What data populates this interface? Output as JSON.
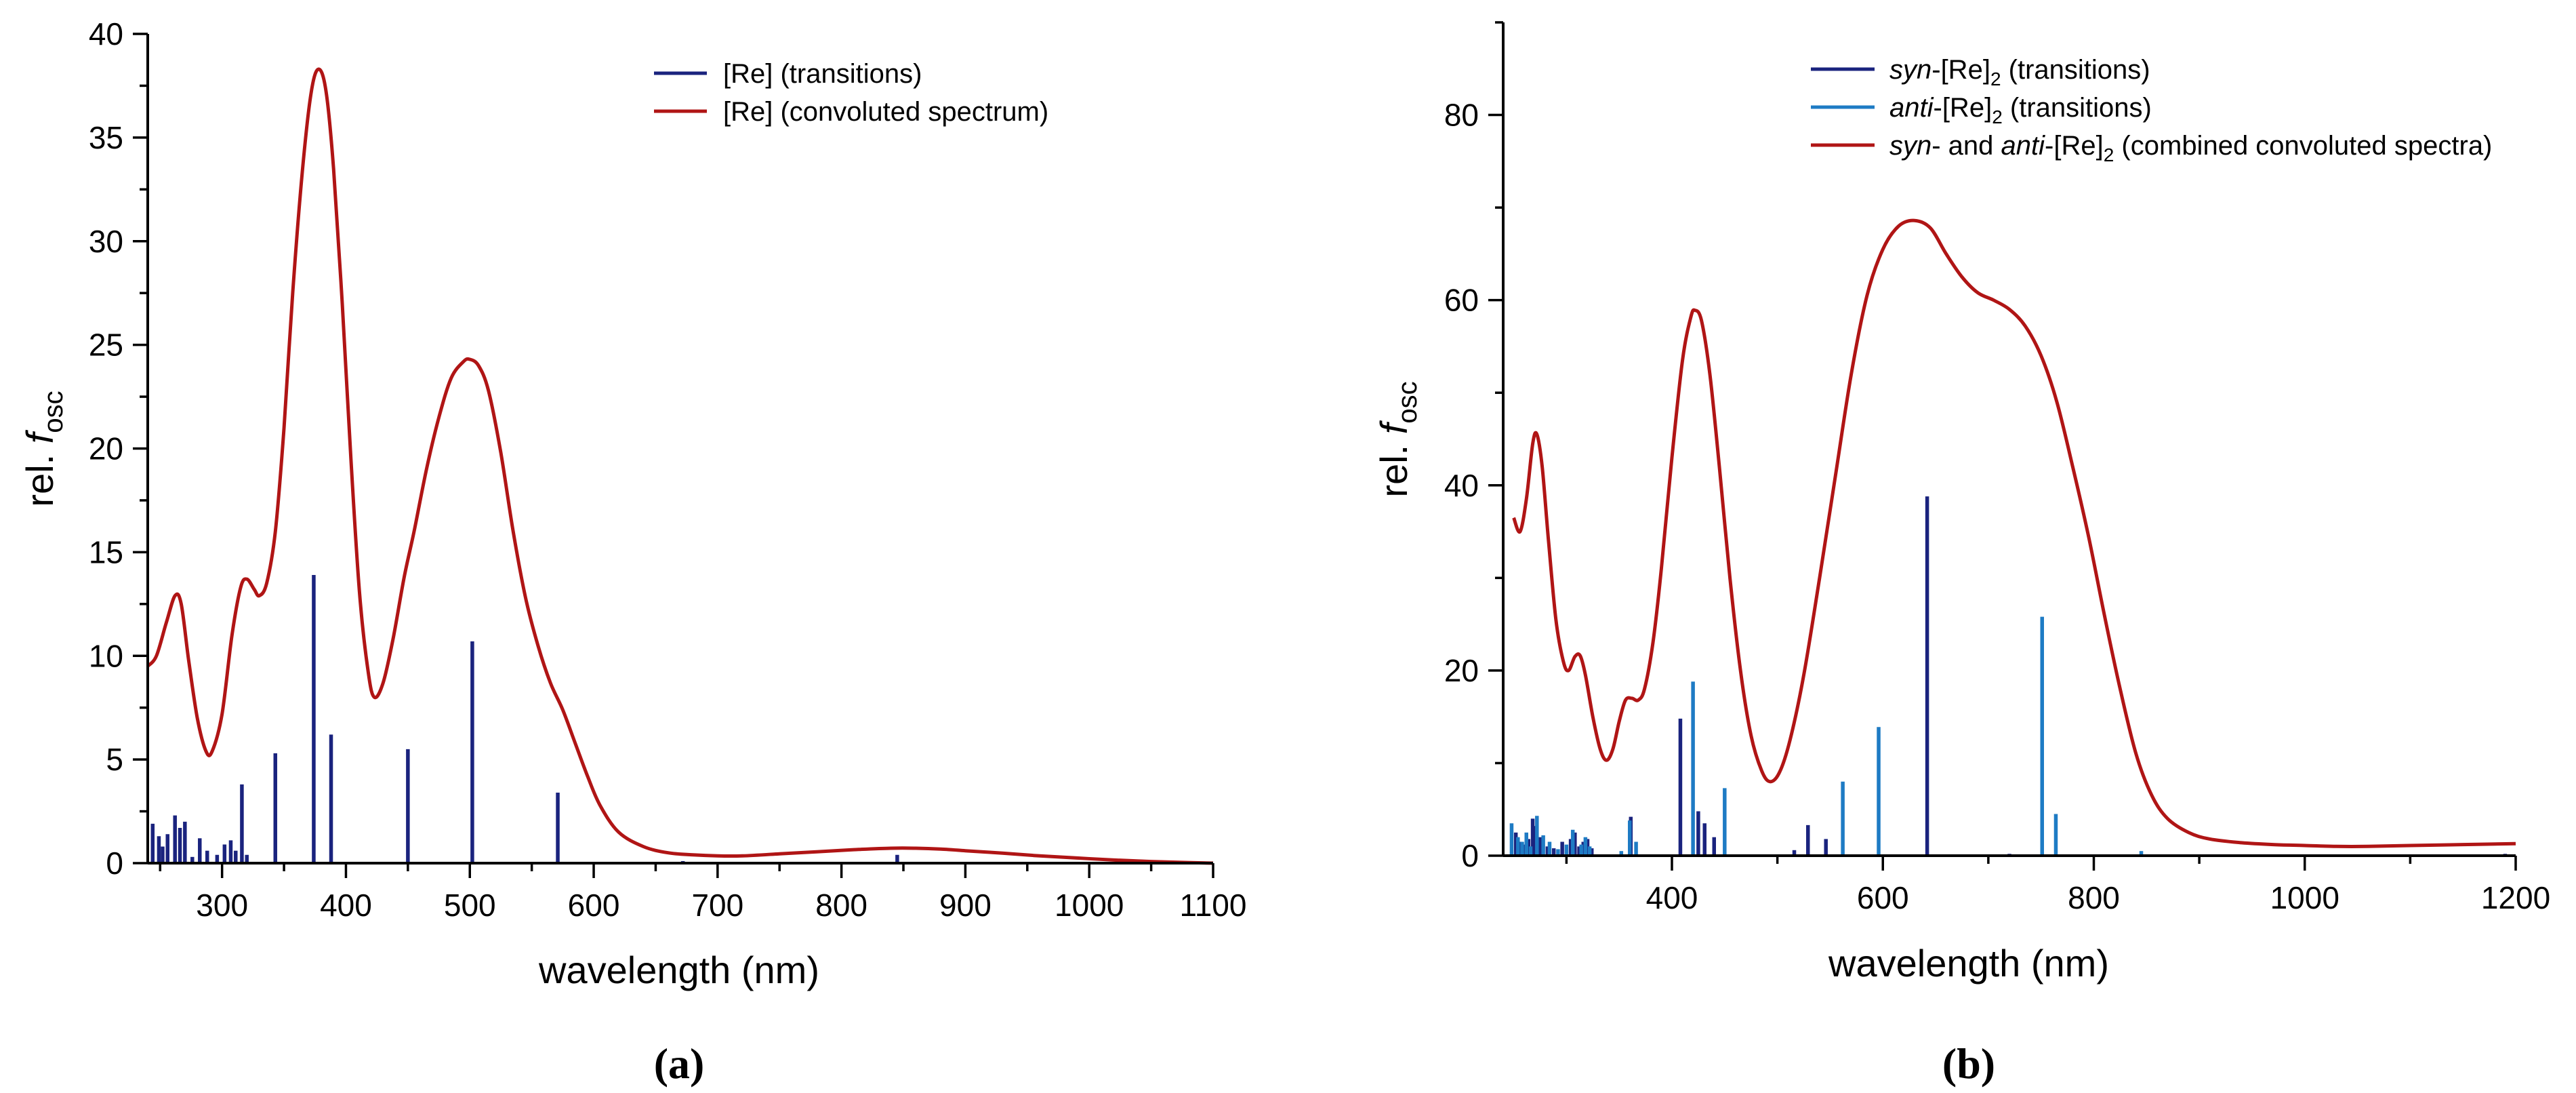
{
  "chart_data": [
    {
      "type": "line",
      "panel_label": "(a)",
      "xlabel": "wavelength (nm)",
      "ylabel_prefix": "rel. ",
      "ylabel_var": "f",
      "ylabel_sub": "osc",
      "xlim": [
        240,
        1100
      ],
      "ylim": [
        0,
        40
      ],
      "xticks": [
        300,
        400,
        500,
        600,
        700,
        800,
        900,
        1000,
        1100
      ],
      "yticks": [
        0,
        5,
        10,
        15,
        20,
        25,
        30,
        35,
        40
      ],
      "legend_position": "top-right",
      "legend": [
        {
          "text": "[Re] (transitions)",
          "style": "bar",
          "color": "#1a237e"
        },
        {
          "text": "[Re] (convoluted spectrum)",
          "style": "line",
          "color": "#b01515"
        }
      ],
      "series": [
        {
          "name": "[Re] (convoluted spectrum)",
          "kind": "line",
          "color": "#b01515",
          "points": [
            [
              240,
              9.5
            ],
            [
              247,
              10.0
            ],
            [
              255,
              11.6
            ],
            [
              262,
              12.9
            ],
            [
              267,
              12.5
            ],
            [
              273,
              9.8
            ],
            [
              280,
              7.0
            ],
            [
              287,
              5.4
            ],
            [
              292,
              5.4
            ],
            [
              300,
              7.2
            ],
            [
              308,
              11.0
            ],
            [
              315,
              13.3
            ],
            [
              320,
              13.7
            ],
            [
              326,
              13.2
            ],
            [
              330,
              12.9
            ],
            [
              336,
              13.5
            ],
            [
              343,
              16.0
            ],
            [
              350,
              21.0
            ],
            [
              357,
              27.5
            ],
            [
              365,
              33.5
            ],
            [
              372,
              37.2
            ],
            [
              378,
              38.3
            ],
            [
              384,
              37.2
            ],
            [
              390,
              33.5
            ],
            [
              397,
              27.0
            ],
            [
              404,
              19.5
            ],
            [
              411,
              13.0
            ],
            [
              418,
              9.2
            ],
            [
              423,
              8.0
            ],
            [
              430,
              8.7
            ],
            [
              438,
              10.8
            ],
            [
              447,
              13.8
            ],
            [
              455,
              16.0
            ],
            [
              465,
              19.0
            ],
            [
              475,
              21.5
            ],
            [
              485,
              23.4
            ],
            [
              495,
              24.2
            ],
            [
              500,
              24.3
            ],
            [
              507,
              24.0
            ],
            [
              515,
              22.8
            ],
            [
              525,
              19.8
            ],
            [
              535,
              16.0
            ],
            [
              545,
              12.8
            ],
            [
              555,
              10.5
            ],
            [
              565,
              8.7
            ],
            [
              575,
              7.4
            ],
            [
              585,
              5.8
            ],
            [
              595,
              4.2
            ],
            [
              605,
              2.8
            ],
            [
              620,
              1.5
            ],
            [
              640,
              0.8
            ],
            [
              660,
              0.5
            ],
            [
              680,
              0.4
            ],
            [
              700,
              0.35
            ],
            [
              720,
              0.35
            ],
            [
              750,
              0.45
            ],
            [
              780,
              0.55
            ],
            [
              810,
              0.65
            ],
            [
              840,
              0.72
            ],
            [
              860,
              0.72
            ],
            [
              880,
              0.68
            ],
            [
              900,
              0.6
            ],
            [
              930,
              0.48
            ],
            [
              960,
              0.35
            ],
            [
              990,
              0.25
            ],
            [
              1020,
              0.15
            ],
            [
              1050,
              0.08
            ],
            [
              1080,
              0.03
            ],
            [
              1100,
              0.0
            ]
          ]
        },
        {
          "name": "[Re] (transitions)",
          "kind": "sticks",
          "color": "#1a237e",
          "points": [
            [
              244,
              1.9
            ],
            [
              249,
              1.3
            ],
            [
              252,
              0.8
            ],
            [
              256,
              1.4
            ],
            [
              262,
              2.3
            ],
            [
              266,
              1.7
            ],
            [
              270,
              2.0
            ],
            [
              276,
              0.3
            ],
            [
              282,
              1.2
            ],
            [
              288,
              0.6
            ],
            [
              296,
              0.4
            ],
            [
              302,
              0.9
            ],
            [
              307,
              1.1
            ],
            [
              311,
              0.6
            ],
            [
              316,
              3.8
            ],
            [
              320,
              0.4
            ],
            [
              343,
              5.3
            ],
            [
              374,
              13.9
            ],
            [
              388,
              6.2
            ],
            [
              450,
              5.5
            ],
            [
              502,
              10.7
            ],
            [
              571,
              3.4
            ],
            [
              672,
              0.1
            ],
            [
              845,
              0.4
            ]
          ]
        }
      ]
    },
    {
      "type": "line",
      "panel_label": "(b)",
      "xlabel": "wavelength (nm)",
      "ylabel_prefix": "rel. ",
      "ylabel_var": "f",
      "ylabel_sub": "osc",
      "xlim": [
        240,
        1200
      ],
      "ylim": [
        0,
        90
      ],
      "xticks": [
        400,
        600,
        800,
        1000,
        1200
      ],
      "yticks": [
        0,
        20,
        40,
        60,
        80
      ],
      "legend_position": "top-right",
      "legend": [
        {
          "italic": "syn",
          "text": "-[Re]",
          "sub": "2",
          "tail": " (transitions)",
          "style": "bar",
          "color": "#1a237e"
        },
        {
          "italic": "anti",
          "text": "-[Re]",
          "sub": "2",
          "tail": " (transitions)",
          "style": "bar",
          "color": "#1e7bc4"
        },
        {
          "italic": "syn",
          "text": "- and ",
          "italic2": "anti",
          "text2": "-[Re]",
          "sub": "2",
          "tail": " (combined convoluted spectra)",
          "style": "line",
          "color": "#b01515"
        }
      ],
      "series": [
        {
          "name": "syn- and anti-[Re]2 (combined convoluted spectra)",
          "kind": "line",
          "color": "#b01515",
          "points": [
            [
              250,
              36.5
            ],
            [
              256,
              35.0
            ],
            [
              262,
              38.5
            ],
            [
              268,
              44.5
            ],
            [
              272,
              45.5
            ],
            [
              277,
              42.0
            ],
            [
              283,
              34.0
            ],
            [
              290,
              25.5
            ],
            [
              297,
              21.0
            ],
            [
              302,
              20.0
            ],
            [
              308,
              21.5
            ],
            [
              313,
              21.6
            ],
            [
              318,
              19.5
            ],
            [
              325,
              15.0
            ],
            [
              332,
              11.5
            ],
            [
              338,
              10.3
            ],
            [
              344,
              11.5
            ],
            [
              350,
              14.5
            ],
            [
              356,
              16.8
            ],
            [
              362,
              17.0
            ],
            [
              368,
              16.8
            ],
            [
              374,
              18.0
            ],
            [
              382,
              23.0
            ],
            [
              390,
              31.0
            ],
            [
              400,
              43.0
            ],
            [
              410,
              53.5
            ],
            [
              418,
              58.2
            ],
            [
              422,
              58.9
            ],
            [
              428,
              57.8
            ],
            [
              436,
              52.0
            ],
            [
              445,
              42.0
            ],
            [
              455,
              30.0
            ],
            [
              465,
              20.0
            ],
            [
              475,
              13.0
            ],
            [
              485,
              9.2
            ],
            [
              493,
              8.0
            ],
            [
              502,
              9.0
            ],
            [
              512,
              12.5
            ],
            [
              525,
              19.5
            ],
            [
              540,
              30.0
            ],
            [
              555,
              41.0
            ],
            [
              570,
              52.0
            ],
            [
              585,
              60.5
            ],
            [
              600,
              65.5
            ],
            [
              615,
              68.0
            ],
            [
              630,
              68.6
            ],
            [
              645,
              67.8
            ],
            [
              660,
              65.0
            ],
            [
              675,
              62.5
            ],
            [
              690,
              60.8
            ],
            [
              705,
              60.0
            ],
            [
              720,
              59.0
            ],
            [
              735,
              57.2
            ],
            [
              750,
              54.0
            ],
            [
              765,
              49.0
            ],
            [
              780,
              42.0
            ],
            [
              795,
              34.5
            ],
            [
              810,
              26.0
            ],
            [
              825,
              18.0
            ],
            [
              840,
              11.0
            ],
            [
              855,
              6.5
            ],
            [
              870,
              4.0
            ],
            [
              890,
              2.5
            ],
            [
              910,
              1.8
            ],
            [
              940,
              1.4
            ],
            [
              970,
              1.2
            ],
            [
              1000,
              1.1
            ],
            [
              1030,
              1.0
            ],
            [
              1060,
              1.0
            ],
            [
              1100,
              1.1
            ],
            [
              1150,
              1.2
            ],
            [
              1200,
              1.3
            ]
          ]
        },
        {
          "name": "syn-[Re]2 (transitions)",
          "kind": "sticks",
          "color": "#1a237e",
          "points": [
            [
              252,
              2.5
            ],
            [
              256,
              1.5
            ],
            [
              260,
              1.2
            ],
            [
              264,
              1.8
            ],
            [
              268,
              4.0
            ],
            [
              270,
              3.2
            ],
            [
              275,
              2.0
            ],
            [
              282,
              1.0
            ],
            [
              288,
              0.8
            ],
            [
              296,
              1.5
            ],
            [
              304,
              1.8
            ],
            [
              308,
              2.5
            ],
            [
              312,
              1.0
            ],
            [
              316,
              1.5
            ],
            [
              320,
              1.8
            ],
            [
              324,
              0.8
            ],
            [
              361,
              4.2
            ],
            [
              408,
              14.8
            ],
            [
              425,
              4.8
            ],
            [
              431,
              3.5
            ],
            [
              440,
              2.0
            ],
            [
              516,
              0.6
            ],
            [
              529,
              3.3
            ],
            [
              546,
              1.8
            ],
            [
              642,
              38.8
            ],
            [
              720,
              0.2
            ],
            [
              1190,
              0.2
            ]
          ]
        },
        {
          "name": "anti-[Re]2 (transitions)",
          "kind": "sticks",
          "color": "#1e7bc4",
          "points": [
            [
              248,
              3.5
            ],
            [
              254,
              2.0
            ],
            [
              258,
              1.5
            ],
            [
              262,
              2.5
            ],
            [
              266,
              1.0
            ],
            [
              272,
              4.3
            ],
            [
              278,
              2.2
            ],
            [
              284,
              1.5
            ],
            [
              292,
              0.7
            ],
            [
              300,
              1.2
            ],
            [
              306,
              2.8
            ],
            [
              314,
              1.2
            ],
            [
              318,
              2.0
            ],
            [
              322,
              1.0
            ],
            [
              352,
              0.5
            ],
            [
              360,
              3.8
            ],
            [
              366,
              1.5
            ],
            [
              420,
              18.8
            ],
            [
              450,
              7.3
            ],
            [
              562,
              8.0
            ],
            [
              596,
              13.9
            ],
            [
              751,
              25.8
            ],
            [
              764,
              4.5
            ],
            [
              845,
              0.5
            ]
          ]
        }
      ]
    }
  ]
}
